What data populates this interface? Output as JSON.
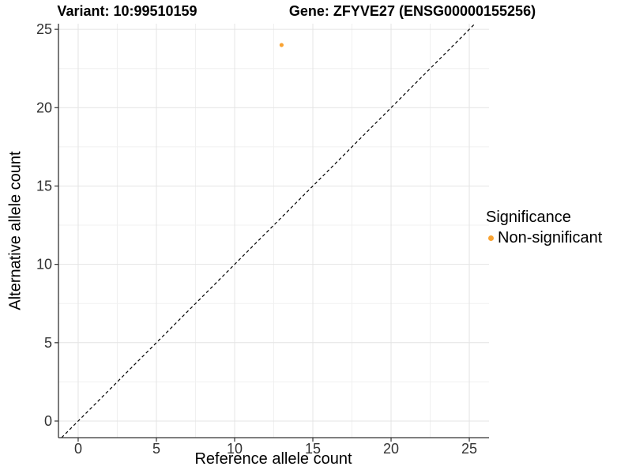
{
  "chart_data": {
    "type": "scatter",
    "title_left": "Variant: 10:99510159",
    "title_right": "Gene: ZFYVE27 (ENSG00000155256)",
    "xlabel": "Reference allele count",
    "ylabel": "Alternative allele count",
    "xticks": [
      0,
      5,
      10,
      15,
      20,
      25
    ],
    "yticks": [
      0,
      5,
      10,
      15,
      20,
      25
    ],
    "xminor": [
      2.5,
      7.5,
      12.5,
      17.5,
      22.5
    ],
    "yminor": [
      2.5,
      7.5,
      12.5,
      17.5,
      22.5
    ],
    "xlim": [
      -1.26,
      26.26
    ],
    "ylim": [
      -1.06,
      25.36
    ],
    "grid": "major+minor",
    "identity_line": {
      "equation": "y = x",
      "style": "dashed",
      "color": "#000000"
    },
    "series": [
      {
        "name": "Non-significant",
        "color": "#F9A332",
        "points": [
          {
            "x": 13,
            "y": 24
          }
        ]
      }
    ],
    "legend": {
      "title": "Significance",
      "position": "right",
      "items": [
        {
          "label": "Non-significant",
          "color": "#F9A332"
        }
      ]
    },
    "style": {
      "axis_line_color": "#333333",
      "tick_color": "#333333",
      "tick_label_color": "#333333",
      "grid_major_color": "#E4E4E4",
      "grid_minor_color": "#F0F0F0",
      "background": "#FFFFFF"
    }
  }
}
